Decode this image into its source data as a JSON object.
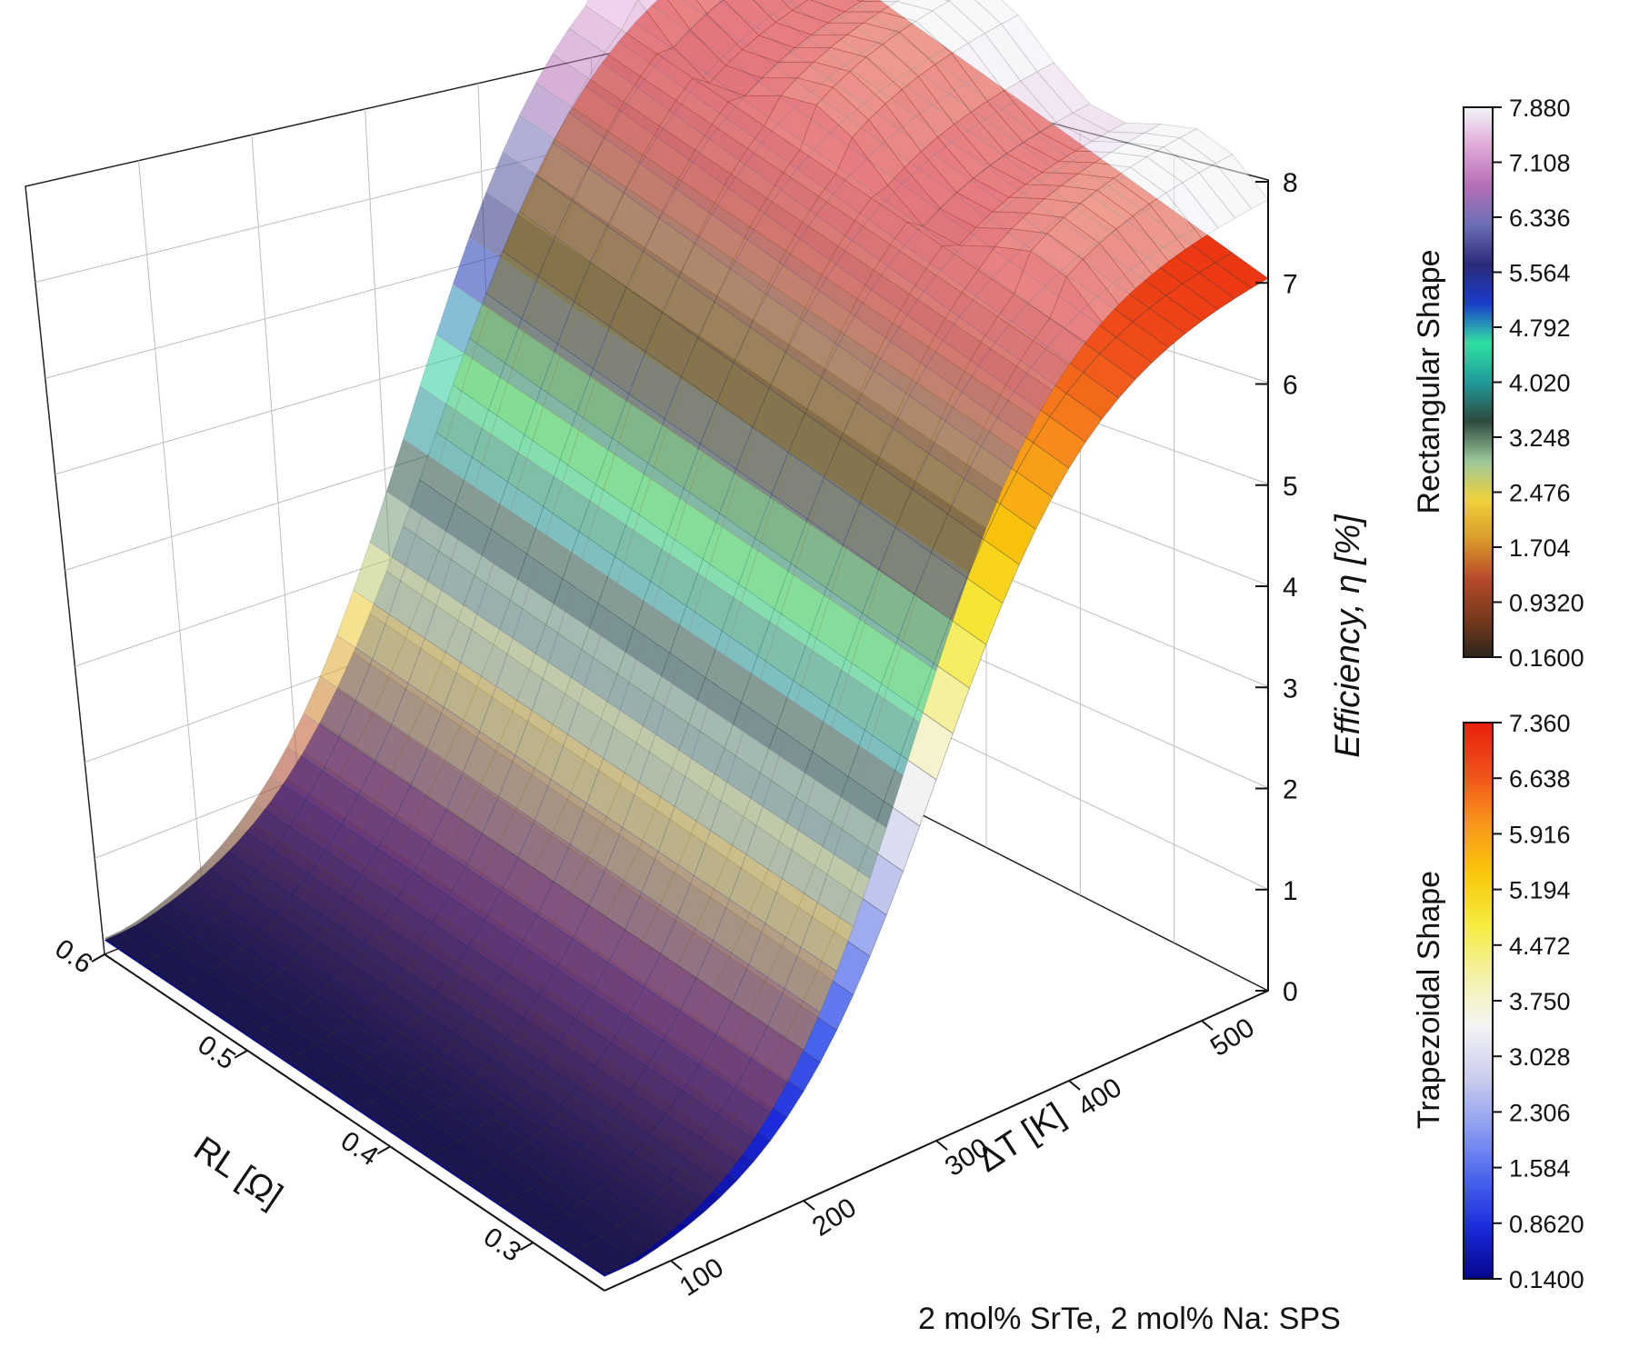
{
  "chart_data": {
    "type": "surface3d",
    "title": "",
    "annotation": "2 mol% SrTe, 2 mol% Na: SPS",
    "z_axis": {
      "label": "Efficiency, η [%]",
      "range": [
        0,
        8
      ],
      "ticks": [
        "0",
        "1",
        "2",
        "3",
        "4",
        "5",
        "6",
        "7",
        "8"
      ]
    },
    "rl_axis": {
      "label": "RL [Ω]",
      "range": [
        0.25,
        0.6
      ],
      "ticks": [
        "0.3",
        "0.4",
        "0.5",
        "0.6"
      ]
    },
    "dt_axis": {
      "label": "ΔT [K]",
      "range": [
        50,
        550
      ],
      "ticks": [
        "100",
        "200",
        "300",
        "400",
        "500"
      ]
    },
    "series": [
      {
        "name": "Rectangular Shape",
        "colorbar_ticks": [
          "7.880",
          "7.108",
          "6.336",
          "5.564",
          "4.792",
          "4.020",
          "3.248",
          "2.476",
          "1.704",
          "0.9320",
          "0.1600"
        ],
        "colors": [
          "#2d261c",
          "#7a3a1c",
          "#b8492a",
          "#d99a2a",
          "#efd23a",
          "#9cc79a",
          "#2e4a3e",
          "#1f9a9a",
          "#2fe0a0",
          "#1a3ccc",
          "#2a2a7a",
          "#6b6fb6",
          "#b46fb6",
          "#e0a8d8",
          "#f1f4f7"
        ],
        "min": 0.16,
        "max": 7.88
      },
      {
        "name": "Trapezoidal Shape",
        "colorbar_ticks": [
          "7.360",
          "6.638",
          "5.916",
          "5.194",
          "4.472",
          "3.750",
          "3.028",
          "2.306",
          "1.584",
          "0.8620",
          "0.1400"
        ],
        "colors": [
          "#05048c",
          "#1a2adc",
          "#4a66ee",
          "#8e9ef0",
          "#cccfee",
          "#f4f4f4",
          "#f4f2a8",
          "#f5ec3e",
          "#f8c80a",
          "#f8961a",
          "#f0501a",
          "#e8200c"
        ],
        "min": 0.14,
        "max": 7.36
      }
    ]
  }
}
